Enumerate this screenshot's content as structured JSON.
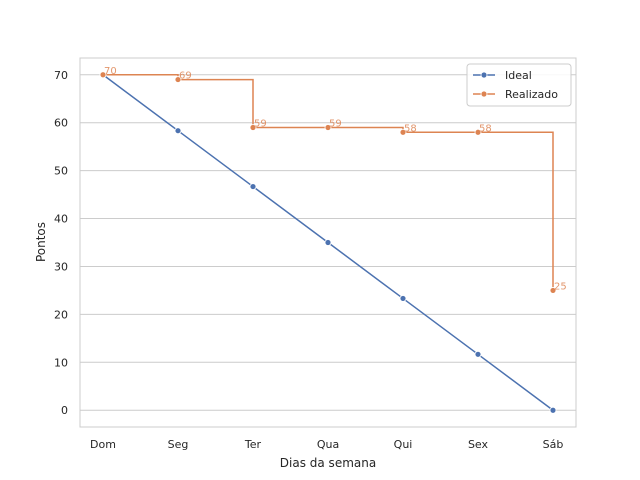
{
  "chart_data": {
    "type": "line",
    "title": "",
    "xlabel": "Dias da semana",
    "ylabel": "Pontos",
    "categories": [
      "Dom",
      "Seg",
      "Ter",
      "Qua",
      "Qui",
      "Sex",
      "Sáb"
    ],
    "ylim": [
      -3.5,
      73.5
    ],
    "yticks": [
      0,
      10,
      20,
      30,
      40,
      50,
      60,
      70
    ],
    "grid": true,
    "legend_position": "top-right",
    "series": [
      {
        "name": "Ideal",
        "color": "#4c72b0",
        "style": "line",
        "marker": "circle",
        "values": [
          70,
          58.33,
          46.67,
          35,
          23.33,
          11.67,
          0
        ]
      },
      {
        "name": "Realizado",
        "color": "#dd8452",
        "style": "step-post",
        "marker": "circle",
        "values": [
          70,
          69,
          59,
          59,
          58,
          58,
          25
        ],
        "data_labels": [
          "70",
          "69",
          "59",
          "59",
          "58",
          "58",
          "25"
        ]
      }
    ]
  }
}
